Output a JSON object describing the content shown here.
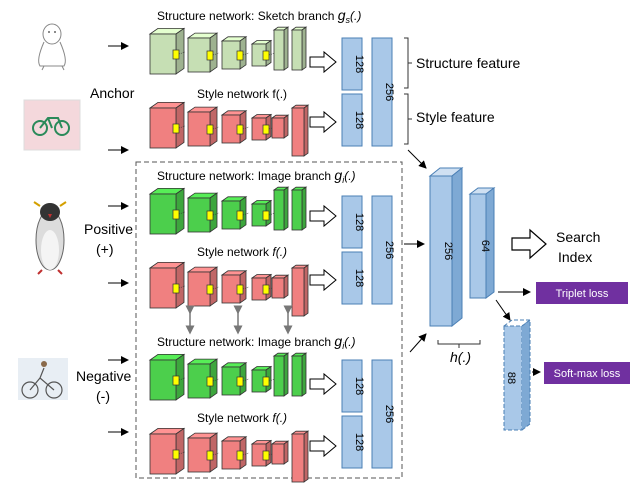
{
  "labels": {
    "structure_sketch": "Structure network: Sketch branch ",
    "structure_sketch_sym": "g",
    "structure_sketch_sub": "s",
    "structure_sketch_tail": "(.)",
    "style_top": "Style network f(.)",
    "structure_image_1": "Structure network:  Image branch ",
    "structure_image_1_sym": "g",
    "structure_image_1_sub": "i",
    "structure_image_1_tail": "(.)",
    "style_mid": "Style network ",
    "style_mid_f": "f(.)",
    "structure_image_2": "Structure network:  Image branch ",
    "structure_image_2_sym": "g",
    "structure_image_2_sub": "i",
    "structure_image_2_tail": "(.)",
    "style_bottom": "Style network ",
    "style_bottom_f": "f(.)",
    "anchor": "Anchor",
    "positive": "Positive",
    "positive_sign": "(+)",
    "negative": "Negative",
    "negative_sign": "(-)",
    "structure_feature": "Structure feature",
    "style_feature": "Style feature",
    "search": "Search",
    "index": "Index",
    "h_func": "h(.)",
    "triplet_loss": "Triplet loss",
    "softmax_loss": "Soft-max loss"
  },
  "dims": {
    "d128": "128",
    "d256": "256",
    "d64": "64",
    "d88": "88"
  },
  "colors": {
    "sketch_green": "#c6dfb4",
    "image_green": "#4ccf4c",
    "style_red": "#f08080",
    "feature_blue": "#a9c8e8",
    "feature_stroke": "#4a7fb5",
    "loss_purple": "#7030a0",
    "kernel_yellow": "#ffff00"
  }
}
